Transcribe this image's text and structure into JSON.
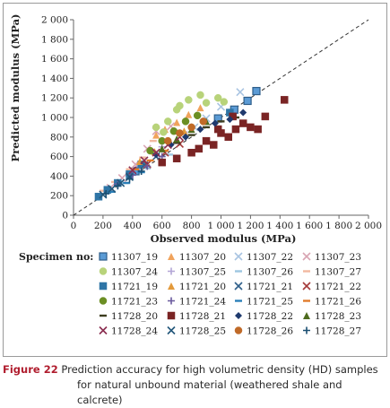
{
  "caption": {
    "figure_number": "Figure 22",
    "line1": "Prediction accuracy for high volumetric density (HD) samples",
    "line2": "for natural unbound material (weathered shale and calcrete)"
  },
  "legend": {
    "title": "Specimen no:",
    "entries": [
      {
        "name": "11307_19",
        "color": "#5b9bd5",
        "shape": "square-outline"
      },
      {
        "name": "11307_20",
        "color": "#f0a35c",
        "shape": "triangle"
      },
      {
        "name": "11307_22",
        "color": "#a9c4e2",
        "shape": "x"
      },
      {
        "name": "11307_23",
        "color": "#d9a5b3",
        "shape": "x"
      },
      {
        "name": "11307_24",
        "color": "#b8d37a",
        "shape": "circle"
      },
      {
        "name": "11307_25",
        "color": "#b3a6d6",
        "shape": "plus"
      },
      {
        "name": "11307_26",
        "color": "#9dc6e0",
        "shape": "dash"
      },
      {
        "name": "11307_27",
        "color": "#f2b8a0",
        "shape": "dash"
      },
      {
        "name": "11721_19",
        "color": "#2e75a6",
        "shape": "square"
      },
      {
        "name": "11721_20",
        "color": "#e39a3b",
        "shape": "triangle"
      },
      {
        "name": "11721_21",
        "color": "#2f5f8a",
        "shape": "x"
      },
      {
        "name": "11721_22",
        "color": "#a43a3a",
        "shape": "x"
      },
      {
        "name": "11721_23",
        "color": "#6b8e23",
        "shape": "circle"
      },
      {
        "name": "11721_24",
        "color": "#6a5a9e",
        "shape": "plus"
      },
      {
        "name": "11721_25",
        "color": "#2b7fb8",
        "shape": "dash"
      },
      {
        "name": "11721_26",
        "color": "#e07b2c",
        "shape": "dash"
      },
      {
        "name": "11728_20",
        "color": "#3d3d1f",
        "shape": "dash"
      },
      {
        "name": "11728_21",
        "color": "#7a2424",
        "shape": "square"
      },
      {
        "name": "11728_22",
        "color": "#1f3a6e",
        "shape": "diamond"
      },
      {
        "name": "11728_23",
        "color": "#4e6b1e",
        "shape": "triangle"
      },
      {
        "name": "11728_24",
        "color": "#8a2d4f",
        "shape": "x"
      },
      {
        "name": "11728_25",
        "color": "#22577a",
        "shape": "x"
      },
      {
        "name": "11728_26",
        "color": "#c06a28",
        "shape": "circle"
      },
      {
        "name": "11728_27",
        "color": "#1b4f72",
        "shape": "plus"
      }
    ]
  },
  "chart_data": {
    "type": "scatter",
    "title": "",
    "xlabel": "Observed modulus (MPa)",
    "ylabel": "Predicted modulus (MPa)",
    "xlim": [
      0,
      2000
    ],
    "ylim": [
      0,
      2000
    ],
    "x_ticks": [
      "0",
      "200",
      "400",
      "600",
      "800",
      "1 000",
      "1 200",
      "1 400",
      "1 600",
      "1 800",
      "2 000"
    ],
    "y_ticks": [
      "0",
      "200",
      "400",
      "600",
      "800",
      "1 000",
      "1 200",
      "1 400",
      "1 600",
      "1 800",
      "2 000"
    ],
    "grid": false,
    "reference_line": {
      "style": "dashed",
      "from": [
        0,
        0
      ],
      "to": [
        2000,
        2000
      ]
    },
    "series": [
      {
        "name": "11307_19",
        "points": [
          [
            1240,
            1270
          ],
          [
            1180,
            1170
          ],
          [
            1090,
            1080
          ],
          [
            980,
            990
          ],
          [
            420,
            450
          ]
        ]
      },
      {
        "name": "11307_20",
        "points": [
          [
            560,
            820
          ],
          [
            620,
            880
          ],
          [
            700,
            950
          ],
          [
            780,
            1030
          ],
          [
            860,
            1100
          ]
        ]
      },
      {
        "name": "11307_22",
        "points": [
          [
            1130,
            1260
          ],
          [
            1000,
            1110
          ],
          [
            900,
            990
          ],
          [
            820,
            900
          ]
        ]
      },
      {
        "name": "11307_23",
        "points": [
          [
            250,
            280
          ],
          [
            330,
            380
          ],
          [
            420,
            520
          ],
          [
            500,
            680
          ],
          [
            560,
            860
          ],
          [
            660,
            910
          ]
        ]
      },
      {
        "name": "11307_24",
        "points": [
          [
            780,
            1180
          ],
          [
            860,
            1230
          ],
          [
            700,
            1080
          ],
          [
            640,
            960
          ],
          [
            720,
            1120
          ],
          [
            980,
            1200
          ],
          [
            560,
            900
          ],
          [
            610,
            850
          ],
          [
            900,
            1150
          ],
          [
            1020,
            1160
          ]
        ]
      },
      {
        "name": "11307_25",
        "points": [
          [
            300,
            300
          ],
          [
            450,
            500
          ],
          [
            600,
            700
          ],
          [
            750,
            850
          ]
        ]
      },
      {
        "name": "11307_26",
        "points": [
          [
            350,
            330
          ],
          [
            500,
            480
          ],
          [
            650,
            620
          ]
        ]
      },
      {
        "name": "11307_27",
        "points": [
          [
            200,
            250
          ],
          [
            280,
            340
          ],
          [
            380,
            470
          ],
          [
            470,
            590
          ],
          [
            540,
            760
          ]
        ]
      },
      {
        "name": "11721_19",
        "points": [
          [
            170,
            190
          ],
          [
            230,
            260
          ],
          [
            300,
            330
          ],
          [
            380,
            420
          ],
          [
            460,
            520
          ],
          [
            1060,
            1050
          ]
        ]
      },
      {
        "name": "11721_20",
        "points": [
          [
            450,
            550
          ],
          [
            550,
            650
          ],
          [
            650,
            760
          ],
          [
            750,
            860
          ]
        ]
      },
      {
        "name": "11721_21",
        "points": [
          [
            380,
            400
          ],
          [
            480,
            510
          ],
          [
            560,
            600
          ]
        ]
      },
      {
        "name": "11721_22",
        "points": [
          [
            500,
            520
          ],
          [
            620,
            640
          ],
          [
            720,
            730
          ]
        ]
      },
      {
        "name": "11721_23",
        "points": [
          [
            520,
            660
          ],
          [
            600,
            760
          ],
          [
            680,
            860
          ],
          [
            760,
            960
          ],
          [
            840,
            1020
          ]
        ]
      },
      {
        "name": "11721_24",
        "points": [
          [
            300,
            320
          ],
          [
            400,
            410
          ],
          [
            500,
            500
          ],
          [
            600,
            600
          ]
        ]
      },
      {
        "name": "11721_25",
        "points": [
          [
            260,
            240
          ],
          [
            360,
            330
          ],
          [
            460,
            440
          ]
        ]
      },
      {
        "name": "11721_26",
        "points": [
          [
            420,
            470
          ],
          [
            520,
            560
          ],
          [
            620,
            660
          ]
        ]
      },
      {
        "name": "11728_20",
        "points": [
          [
            700,
            740
          ],
          [
            800,
            820
          ],
          [
            900,
            900
          ],
          [
            1000,
            960
          ],
          [
            1100,
            1000
          ]
        ]
      },
      {
        "name": "11728_21",
        "points": [
          [
            900,
            760
          ],
          [
            1000,
            840
          ],
          [
            1100,
            880
          ],
          [
            1200,
            900
          ],
          [
            1300,
            1010
          ],
          [
            1430,
            1180
          ],
          [
            1050,
            800
          ],
          [
            950,
            720
          ],
          [
            850,
            680
          ],
          [
            1150,
            940
          ],
          [
            1250,
            880
          ],
          [
            800,
            640
          ],
          [
            700,
            580
          ],
          [
            600,
            540
          ],
          [
            1080,
            1010
          ],
          [
            980,
            880
          ]
        ]
      },
      {
        "name": "11728_22",
        "points": [
          [
            560,
            620
          ],
          [
            660,
            720
          ],
          [
            760,
            800
          ],
          [
            860,
            880
          ],
          [
            960,
            940
          ],
          [
            1060,
            980
          ],
          [
            1150,
            1050
          ]
        ]
      },
      {
        "name": "11728_23",
        "points": [
          [
            600,
            680
          ],
          [
            700,
            780
          ],
          [
            800,
            880
          ],
          [
            900,
            960
          ]
        ]
      },
      {
        "name": "11728_24",
        "points": [
          [
            400,
            460
          ],
          [
            480,
            560
          ],
          [
            560,
            640
          ],
          [
            640,
            720
          ],
          [
            720,
            800
          ]
        ]
      },
      {
        "name": "11728_25",
        "points": [
          [
            200,
            210
          ],
          [
            260,
            270
          ],
          [
            320,
            330
          ],
          [
            380,
            390
          ]
        ]
      },
      {
        "name": "11728_26",
        "points": [
          [
            640,
            760
          ],
          [
            720,
            840
          ],
          [
            800,
            900
          ],
          [
            880,
            960
          ]
        ]
      },
      {
        "name": "11728_27",
        "points": [
          [
            220,
            220
          ],
          [
            300,
            300
          ],
          [
            380,
            370
          ],
          [
            460,
            450
          ]
        ]
      }
    ]
  }
}
